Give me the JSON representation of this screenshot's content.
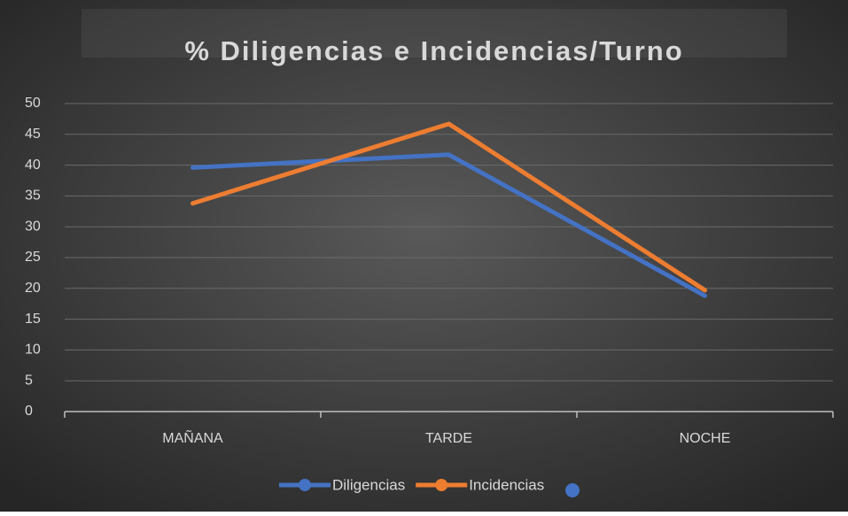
{
  "chart_data": {
    "type": "line",
    "title": "% Diligencias e Incidencias/Turno",
    "categories": [
      "MAÑANA",
      "TARDE",
      "NOCHE"
    ],
    "series": [
      {
        "name": "Diligencias",
        "color": "#4472c4",
        "values": [
          39.6,
          41.7,
          18.8
        ]
      },
      {
        "name": "Incidencias",
        "color": "#ed7d31",
        "values": [
          33.8,
          46.7,
          19.7
        ]
      }
    ],
    "ylim": [
      0,
      50
    ],
    "yticks": [
      0,
      5,
      10,
      15,
      20,
      25,
      30,
      35,
      40,
      45,
      50
    ],
    "grid": true,
    "legend": "bottom"
  }
}
